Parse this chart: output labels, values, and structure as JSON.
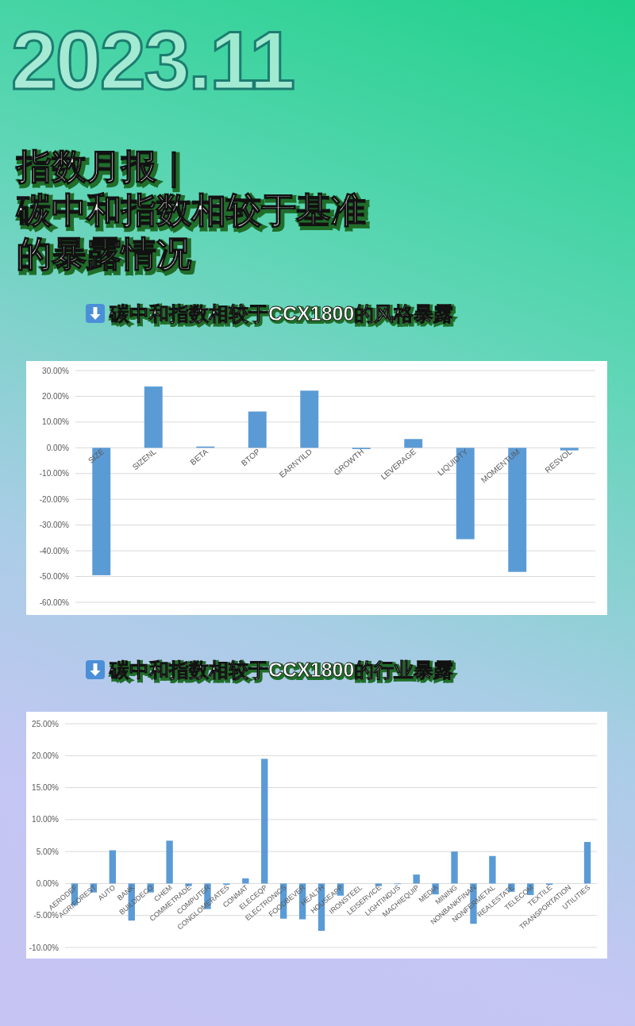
{
  "chart_data": [
    {
      "type": "other",
      "subtitle": "2023.11",
      "title": "指数月报｜碳中和指数相较于基准的暴露情况"
    },
    {
      "type": "bar",
      "title": "碳中和指数相较于CCX1800的风格暴露",
      "color": "#5b9bd5",
      "categories": [
        "SIZE",
        "SIZENL",
        "BETA",
        "BTOP",
        "EARNYILD",
        "GROWTH",
        "LEVERAGE",
        "LIQUIDTY",
        "MOMENTUM",
        "RESVOL"
      ],
      "values": [
        -49.5,
        23.8,
        0.5,
        14.1,
        22.2,
        -0.5,
        3.4,
        -35.5,
        -48.2,
        -1.0
      ],
      "ylim": [
        -60,
        30
      ],
      "yticks": [
        {
          "value": -60,
          "label": "-60.00%"
        },
        {
          "value": -50,
          "label": "-50.00%"
        },
        {
          "value": -40,
          "label": "-40.00%"
        },
        {
          "value": -30,
          "label": "-30.00%"
        },
        {
          "value": -20,
          "label": "-20.00%"
        },
        {
          "value": -10,
          "label": "-10.00%"
        },
        {
          "value": 0,
          "label": "0.00%"
        },
        {
          "value": 10,
          "label": "10.00%"
        },
        {
          "value": 20,
          "label": "20.00%"
        },
        {
          "value": 30,
          "label": "30.00%"
        }
      ],
      "grid": "y"
    },
    {
      "type": "bar",
      "title": "碳中和指数相较于CCX1800的行业暴露",
      "color": "#5b9bd5",
      "categories": [
        "AERODEF",
        "AGRIFOREST",
        "AUTO",
        "BANK",
        "BUILDDECO",
        "CHEM",
        "COMMETRADE",
        "COMPUTER",
        "CONGLOMERATES",
        "CONMAT",
        "ELECEQP",
        "ELECTRONICS",
        "FOODBEVER",
        "HEALTH",
        "HOUSEAPP",
        "IRONSTEEL",
        "LEISERVICE",
        "LIGHTINDUS",
        "MACHIEQUIP",
        "MEDIA",
        "MINING",
        "NONBANKFINAN",
        "NONFERMETAL",
        "REALESTATE",
        "TELECOM",
        "TEXTILE",
        "TRANSPORTATION",
        "UTILITIES"
      ],
      "values": [
        -3.4,
        -1.4,
        5.2,
        -5.8,
        -1.4,
        6.7,
        -0.4,
        -4.0,
        -0.2,
        0.8,
        19.5,
        -5.5,
        -5.6,
        -7.4,
        -1.9,
        0,
        -0.4,
        -0.1,
        1.4,
        -1.7,
        5.0,
        -6.3,
        4.3,
        -1.3,
        -1.8,
        -0.2,
        0,
        6.5
      ],
      "ylim": [
        -10,
        25
      ],
      "yticks": [
        {
          "value": -10,
          "label": "-10.00%"
        },
        {
          "value": -5,
          "label": "-5.00%"
        },
        {
          "value": 0,
          "label": "0.00%"
        },
        {
          "value": 5,
          "label": "5.00%"
        },
        {
          "value": 10,
          "label": "10.00%"
        },
        {
          "value": 15,
          "label": "15.00%"
        },
        {
          "value": 20,
          "label": "20.00%"
        },
        {
          "value": 25,
          "label": "25.00%"
        }
      ],
      "grid": "y"
    }
  ]
}
